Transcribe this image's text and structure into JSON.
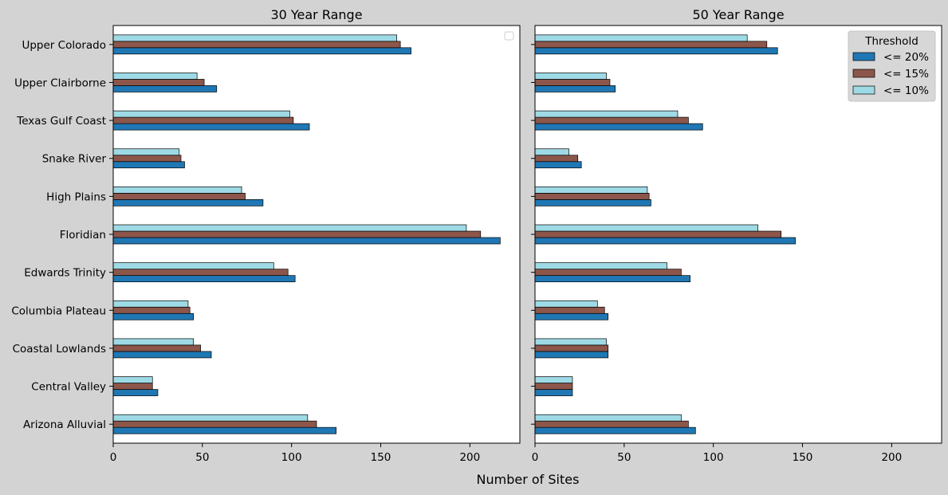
{
  "figure": {
    "xlabel": "Number of Sites"
  },
  "colors": {
    "<= 20%": "#1f77b4",
    "<= 15%": "#8c564b",
    "<= 10%": "#9edae5",
    "edge": "#000000",
    "figure_bg": "#d3d3d3",
    "axes_bg": "#ffffff"
  },
  "chart_data": [
    {
      "type": "bar",
      "orientation": "horizontal",
      "title": "30 Year Range",
      "categories": [
        "Upper Colorado",
        "Upper Clairborne",
        "Texas Gulf Coast",
        "Snake River",
        "High Plains",
        "Floridian",
        "Edwards Trinity",
        "Columbia Plateau",
        "Coastal Lowlands",
        "Central Valley",
        "Arizona Alluvial"
      ],
      "xlim": [
        0,
        228
      ],
      "xticks": [
        0,
        50,
        100,
        150,
        200
      ],
      "xlabel": "",
      "grid": false,
      "legend": {
        "title": "",
        "entries": [],
        "placement": "top-right"
      },
      "series": [
        {
          "name": "<= 20%",
          "values": [
            167,
            58,
            110,
            40,
            84,
            217,
            102,
            45,
            55,
            25,
            125
          ]
        },
        {
          "name": "<= 15%",
          "values": [
            161,
            51,
            101,
            38,
            74,
            206,
            98,
            43,
            49,
            22,
            114
          ]
        },
        {
          "name": "<= 10%",
          "values": [
            159,
            47,
            99,
            37,
            72,
            198,
            90,
            42,
            45,
            22,
            109
          ]
        }
      ]
    },
    {
      "type": "bar",
      "orientation": "horizontal",
      "title": "50 Year Range",
      "categories": [
        "Upper Colorado",
        "Upper Clairborne",
        "Texas Gulf Coast",
        "Snake River",
        "High Plains",
        "Floridian",
        "Edwards Trinity",
        "Columbia Plateau",
        "Coastal Lowlands",
        "Central Valley",
        "Arizona Alluvial"
      ],
      "xlim": [
        0,
        228
      ],
      "xticks": [
        0,
        50,
        100,
        150,
        200
      ],
      "xlabel": "",
      "grid": false,
      "legend": {
        "title": "Threshold",
        "entries": [
          "<= 20%",
          "<= 15%",
          "<= 10%"
        ],
        "placement": "top-right"
      },
      "series": [
        {
          "name": "<= 20%",
          "values": [
            136,
            45,
            94,
            26,
            65,
            146,
            87,
            41,
            41,
            21,
            90
          ]
        },
        {
          "name": "<= 15%",
          "values": [
            130,
            42,
            86,
            24,
            64,
            138,
            82,
            39,
            41,
            21,
            86
          ]
        },
        {
          "name": "<= 10%",
          "values": [
            119,
            40,
            80,
            19,
            63,
            125,
            74,
            35,
            40,
            21,
            82
          ]
        }
      ]
    }
  ]
}
